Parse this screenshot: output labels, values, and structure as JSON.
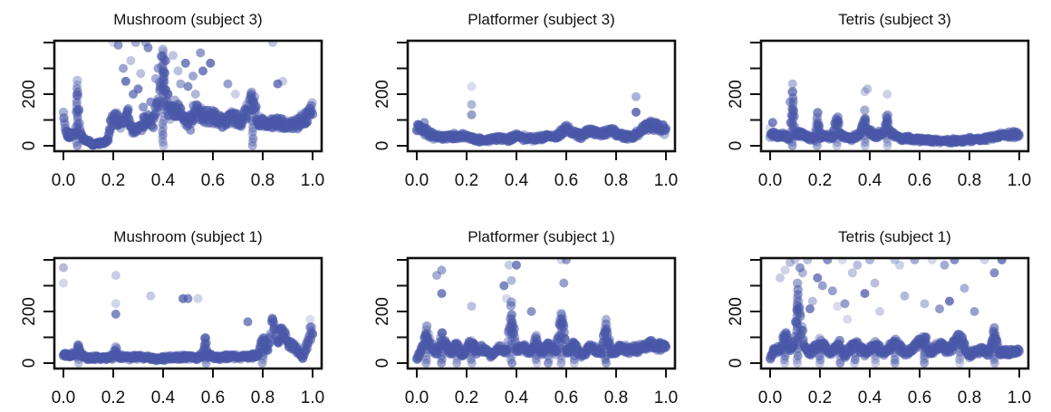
{
  "figure": {
    "point_color": "#4a58a8",
    "frame_color": "#111111"
  },
  "chart_data": [
    {
      "type": "scatter",
      "title": "Mushroom (subject 3)",
      "xlabel": "",
      "ylabel": "",
      "xlim": [
        0,
        1
      ],
      "ylim": [
        0,
        400
      ],
      "xticks": [
        "0.0",
        "0.2",
        "0.4",
        "0.6",
        "0.8",
        "1.0"
      ],
      "yticks": [
        "0",
        "200"
      ],
      "trace": [
        [
          0,
          150
        ],
        [
          0.01,
          50
        ],
        [
          0.03,
          40
        ],
        [
          0.05,
          60
        ],
        [
          0.055,
          250
        ],
        [
          0.06,
          130
        ],
        [
          0.07,
          40
        ],
        [
          0.09,
          20
        ],
        [
          0.12,
          8
        ],
        [
          0.16,
          10
        ],
        [
          0.18,
          25
        ],
        [
          0.19,
          90
        ],
        [
          0.21,
          110
        ],
        [
          0.23,
          80
        ],
        [
          0.26,
          120
        ],
        [
          0.28,
          60
        ],
        [
          0.31,
          70
        ],
        [
          0.33,
          100
        ],
        [
          0.36,
          90
        ],
        [
          0.38,
          160
        ],
        [
          0.4,
          380
        ],
        [
          0.41,
          180
        ],
        [
          0.43,
          120
        ],
        [
          0.45,
          150
        ],
        [
          0.48,
          110
        ],
        [
          0.5,
          90
        ],
        [
          0.53,
          140
        ],
        [
          0.56,
          120
        ],
        [
          0.6,
          110
        ],
        [
          0.64,
          90
        ],
        [
          0.68,
          110
        ],
        [
          0.72,
          100
        ],
        [
          0.76,
          180
        ],
        [
          0.78,
          100
        ],
        [
          0.82,
          80
        ],
        [
          0.86,
          90
        ],
        [
          0.9,
          80
        ],
        [
          0.95,
          90
        ],
        [
          1,
          140
        ]
      ],
      "outliers": [
        [
          0.2,
          400
        ],
        [
          0.22,
          390
        ],
        [
          0.24,
          300
        ],
        [
          0.25,
          250
        ],
        [
          0.27,
          330
        ],
        [
          0.28,
          200
        ],
        [
          0.3,
          220
        ],
        [
          0.31,
          280
        ],
        [
          0.32,
          150
        ],
        [
          0.34,
          380
        ],
        [
          0.35,
          170
        ],
        [
          0.37,
          260
        ],
        [
          0.38,
          300
        ],
        [
          0.41,
          330
        ],
        [
          0.42,
          200
        ],
        [
          0.44,
          350
        ],
        [
          0.46,
          290
        ],
        [
          0.47,
          240
        ],
        [
          0.49,
          320
        ],
        [
          0.5,
          230
        ],
        [
          0.51,
          60
        ],
        [
          0.52,
          270
        ],
        [
          0.53,
          200
        ],
        [
          0.55,
          360
        ],
        [
          0.56,
          290
        ],
        [
          0.59,
          320
        ],
        [
          0.66,
          240
        ],
        [
          0.69,
          200
        ],
        [
          0.86,
          240
        ],
        [
          0.88,
          250
        ],
        [
          0.84,
          400
        ],
        [
          0.29,
          400
        ],
        [
          0.33,
          400
        ]
      ],
      "scatter_seed": 11
    },
    {
      "type": "scatter",
      "title": "Platformer (subject 3)",
      "xlabel": "",
      "ylabel": "",
      "xlim": [
        0,
        1
      ],
      "ylim": [
        0,
        400
      ],
      "xticks": [
        "0.0",
        "0.2",
        "0.4",
        "0.6",
        "0.8",
        "1.0"
      ],
      "yticks": [
        "0",
        "200"
      ],
      "trace": [
        [
          0,
          70
        ],
        [
          0.03,
          60
        ],
        [
          0.06,
          40
        ],
        [
          0.1,
          35
        ],
        [
          0.15,
          40
        ],
        [
          0.2,
          35
        ],
        [
          0.22,
          30
        ],
        [
          0.25,
          25
        ],
        [
          0.28,
          20
        ],
        [
          0.32,
          30
        ],
        [
          0.36,
          25
        ],
        [
          0.4,
          35
        ],
        [
          0.44,
          30
        ],
        [
          0.48,
          25
        ],
        [
          0.52,
          40
        ],
        [
          0.56,
          35
        ],
        [
          0.6,
          70
        ],
        [
          0.63,
          50
        ],
        [
          0.66,
          40
        ],
        [
          0.7,
          60
        ],
        [
          0.74,
          45
        ],
        [
          0.78,
          60
        ],
        [
          0.82,
          40
        ],
        [
          0.86,
          30
        ],
        [
          0.9,
          60
        ],
        [
          0.94,
          80
        ],
        [
          1,
          60
        ]
      ],
      "outliers": [
        [
          0.22,
          230
        ],
        [
          0.22,
          160
        ],
        [
          0.22,
          120
        ],
        [
          0.88,
          190
        ],
        [
          0.88,
          130
        ],
        [
          0.01,
          80
        ],
        [
          0.03,
          90
        ]
      ],
      "scatter_seed": 22
    },
    {
      "type": "scatter",
      "title": "Tetris (subject 3)",
      "xlabel": "",
      "ylabel": "",
      "xlim": [
        0,
        1
      ],
      "ylim": [
        0,
        400
      ],
      "xticks": [
        "0.0",
        "0.2",
        "0.4",
        "0.6",
        "0.8",
        "1.0"
      ],
      "yticks": [
        "0",
        "200"
      ],
      "trace": [
        [
          0,
          40
        ],
        [
          0.04,
          45
        ],
        [
          0.08,
          30
        ],
        [
          0.09,
          200
        ],
        [
          0.1,
          50
        ],
        [
          0.14,
          40
        ],
        [
          0.18,
          30
        ],
        [
          0.19,
          110
        ],
        [
          0.2,
          40
        ],
        [
          0.25,
          30
        ],
        [
          0.27,
          110
        ],
        [
          0.28,
          40
        ],
        [
          0.32,
          30
        ],
        [
          0.36,
          40
        ],
        [
          0.38,
          120
        ],
        [
          0.39,
          60
        ],
        [
          0.42,
          40
        ],
        [
          0.46,
          50
        ],
        [
          0.47,
          120
        ],
        [
          0.48,
          50
        ],
        [
          0.52,
          30
        ],
        [
          0.58,
          25
        ],
        [
          0.64,
          20
        ],
        [
          0.7,
          20
        ],
        [
          0.76,
          20
        ],
        [
          0.82,
          25
        ],
        [
          0.88,
          30
        ],
        [
          0.94,
          40
        ],
        [
          1,
          45
        ]
      ],
      "outliers": [
        [
          0.09,
          240
        ],
        [
          0.38,
          210
        ],
        [
          0.39,
          220
        ],
        [
          0.47,
          200
        ],
        [
          0.08,
          170
        ],
        [
          0.0,
          70
        ],
        [
          0.01,
          90
        ]
      ],
      "scatter_seed": 33
    },
    {
      "type": "scatter",
      "title": "Mushroom (subject 1)",
      "xlabel": "",
      "ylabel": "",
      "xlim": [
        0,
        1
      ],
      "ylim": [
        0,
        400
      ],
      "xticks": [
        "0.0",
        "0.2",
        "0.4",
        "0.6",
        "0.8",
        "1.0"
      ],
      "yticks": [
        "0",
        "200"
      ],
      "trace": [
        [
          0,
          35
        ],
        [
          0.05,
          30
        ],
        [
          0.06,
          70
        ],
        [
          0.07,
          30
        ],
        [
          0.1,
          20
        ],
        [
          0.15,
          20
        ],
        [
          0.2,
          25
        ],
        [
          0.21,
          60
        ],
        [
          0.22,
          25
        ],
        [
          0.26,
          20
        ],
        [
          0.3,
          25
        ],
        [
          0.34,
          20
        ],
        [
          0.38,
          15
        ],
        [
          0.42,
          20
        ],
        [
          0.46,
          20
        ],
        [
          0.5,
          25
        ],
        [
          0.54,
          20
        ],
        [
          0.56,
          30
        ],
        [
          0.57,
          90
        ],
        [
          0.58,
          30
        ],
        [
          0.62,
          20
        ],
        [
          0.66,
          25
        ],
        [
          0.7,
          25
        ],
        [
          0.74,
          25
        ],
        [
          0.78,
          30
        ],
        [
          0.8,
          100
        ],
        [
          0.82,
          40
        ],
        [
          0.84,
          160
        ],
        [
          0.86,
          100
        ],
        [
          0.88,
          120
        ],
        [
          0.9,
          80
        ],
        [
          0.93,
          60
        ],
        [
          0.96,
          20
        ],
        [
          0.98,
          80
        ],
        [
          1,
          140
        ]
      ],
      "outliers": [
        [
          0.0,
          370
        ],
        [
          0.0,
          310
        ],
        [
          0.21,
          340
        ],
        [
          0.21,
          230
        ],
        [
          0.21,
          190
        ],
        [
          0.35,
          260
        ],
        [
          0.48,
          250
        ],
        [
          0.5,
          250
        ],
        [
          0.54,
          250
        ],
        [
          0.99,
          170
        ],
        [
          0.74,
          160
        ]
      ],
      "scatter_seed": 44
    },
    {
      "type": "scatter",
      "title": "Platformer (subject 1)",
      "xlabel": "",
      "ylabel": "",
      "xlim": [
        0,
        1
      ],
      "ylim": [
        0,
        400
      ],
      "xticks": [
        "0.0",
        "0.2",
        "0.4",
        "0.6",
        "0.8",
        "1.0"
      ],
      "yticks": [
        "0",
        "200"
      ],
      "trace": [
        [
          0,
          20
        ],
        [
          0.02,
          50
        ],
        [
          0.04,
          120
        ],
        [
          0.06,
          60
        ],
        [
          0.08,
          40
        ],
        [
          0.1,
          100
        ],
        [
          0.12,
          60
        ],
        [
          0.14,
          40
        ],
        [
          0.16,
          70
        ],
        [
          0.18,
          30
        ],
        [
          0.2,
          50
        ],
        [
          0.22,
          90
        ],
        [
          0.24,
          40
        ],
        [
          0.27,
          60
        ],
        [
          0.3,
          30
        ],
        [
          0.33,
          60
        ],
        [
          0.36,
          40
        ],
        [
          0.38,
          200
        ],
        [
          0.4,
          50
        ],
        [
          0.43,
          60
        ],
        [
          0.46,
          40
        ],
        [
          0.48,
          90
        ],
        [
          0.5,
          40
        ],
        [
          0.53,
          70
        ],
        [
          0.56,
          40
        ],
        [
          0.58,
          200
        ],
        [
          0.6,
          40
        ],
        [
          0.63,
          70
        ],
        [
          0.66,
          30
        ],
        [
          0.7,
          60
        ],
        [
          0.74,
          40
        ],
        [
          0.76,
          140
        ],
        [
          0.78,
          40
        ],
        [
          0.82,
          60
        ],
        [
          0.86,
          50
        ],
        [
          0.9,
          60
        ],
        [
          0.94,
          70
        ],
        [
          1,
          60
        ]
      ],
      "outliers": [
        [
          0.1,
          360
        ],
        [
          0.1,
          270
        ],
        [
          0.08,
          340
        ],
        [
          0.37,
          380
        ],
        [
          0.38,
          320
        ],
        [
          0.35,
          300
        ],
        [
          0.36,
          250
        ],
        [
          0.4,
          380
        ],
        [
          0.58,
          400
        ],
        [
          0.6,
          400
        ],
        [
          0.59,
          310
        ],
        [
          0.76,
          170
        ],
        [
          0.46,
          200
        ],
        [
          0.22,
          220
        ]
      ],
      "scatter_seed": 55
    },
    {
      "type": "scatter",
      "title": "Tetris (subject 1)",
      "xlabel": "",
      "ylabel": "",
      "xlim": [
        0,
        1
      ],
      "ylim": [
        0,
        400
      ],
      "xticks": [
        "0.0",
        "0.2",
        "0.4",
        "0.6",
        "0.8",
        "1.0"
      ],
      "yticks": [
        "0",
        "200"
      ],
      "trace": [
        [
          0,
          20
        ],
        [
          0.02,
          60
        ],
        [
          0.04,
          40
        ],
        [
          0.06,
          120
        ],
        [
          0.08,
          50
        ],
        [
          0.1,
          100
        ],
        [
          0.11,
          280
        ],
        [
          0.12,
          160
        ],
        [
          0.14,
          60
        ],
        [
          0.16,
          40
        ],
        [
          0.2,
          80
        ],
        [
          0.24,
          40
        ],
        [
          0.28,
          70
        ],
        [
          0.3,
          30
        ],
        [
          0.34,
          80
        ],
        [
          0.38,
          40
        ],
        [
          0.42,
          70
        ],
        [
          0.46,
          40
        ],
        [
          0.5,
          80
        ],
        [
          0.54,
          40
        ],
        [
          0.58,
          60
        ],
        [
          0.62,
          100
        ],
        [
          0.64,
          40
        ],
        [
          0.68,
          70
        ],
        [
          0.72,
          50
        ],
        [
          0.76,
          100
        ],
        [
          0.8,
          30
        ],
        [
          0.84,
          50
        ],
        [
          0.88,
          40
        ],
        [
          0.9,
          130
        ],
        [
          0.92,
          40
        ],
        [
          0.96,
          40
        ],
        [
          1,
          50
        ]
      ],
      "outliers": [
        [
          0.04,
          330
        ],
        [
          0.06,
          360
        ],
        [
          0.08,
          390
        ],
        [
          0.1,
          400
        ],
        [
          0.12,
          370
        ],
        [
          0.13,
          350
        ],
        [
          0.15,
          400
        ],
        [
          0.17,
          240
        ],
        [
          0.19,
          330
        ],
        [
          0.21,
          300
        ],
        [
          0.23,
          400
        ],
        [
          0.25,
          280
        ],
        [
          0.27,
          220
        ],
        [
          0.29,
          400
        ],
        [
          0.31,
          170
        ],
        [
          0.33,
          350
        ],
        [
          0.35,
          380
        ],
        [
          0.38,
          270
        ],
        [
          0.4,
          400
        ],
        [
          0.42,
          310
        ],
        [
          0.44,
          200
        ],
        [
          0.5,
          400
        ],
        [
          0.52,
          380
        ],
        [
          0.54,
          260
        ],
        [
          0.58,
          400
        ],
        [
          0.62,
          230
        ],
        [
          0.65,
          400
        ],
        [
          0.68,
          210
        ],
        [
          0.7,
          380
        ],
        [
          0.72,
          240
        ],
        [
          0.74,
          400
        ],
        [
          0.78,
          290
        ],
        [
          0.82,
          200
        ],
        [
          0.86,
          400
        ],
        [
          0.9,
          350
        ],
        [
          0.93,
          400
        ],
        [
          0.3,
          230
        ],
        [
          0.16,
          210
        ]
      ],
      "scatter_seed": 66
    }
  ]
}
